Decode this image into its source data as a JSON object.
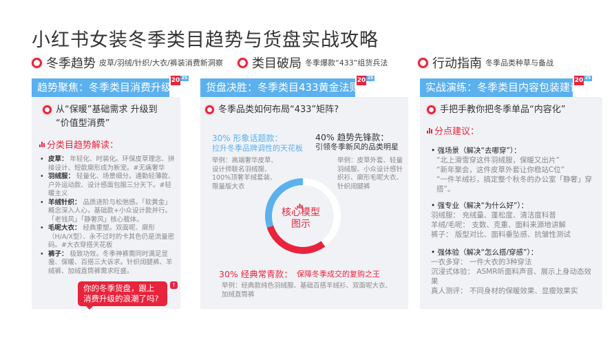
{
  "title": "小红书女装冬季类目趋势与货盘实战攻略",
  "colors": {
    "accent_red": "#e8243c",
    "accent_blue": "#5bb0ee",
    "panel_bg": "#f1f2f6"
  },
  "badge": {
    "year_a": "20",
    "year_b": "25"
  },
  "sections": [
    {
      "label": "冬季趋势",
      "desc": "皮草/羽绒/针织/大衣/裤装消费新洞察"
    },
    {
      "label": "类目破局",
      "desc": "冬季爆款“433”组货兵法"
    },
    {
      "label": "行动指南",
      "desc": "冬季品类种草与备战"
    }
  ],
  "col1": {
    "bar": "趋势聚焦：冬季类目消费升级",
    "question_1": "从“保暖”基础需求 升级到",
    "question_2": "“价值型消费”",
    "subtitle": "分类目趋势解读：",
    "items": [
      {
        "name": "皮草：",
        "text": "年轻化、时装化。环保皮草理念、拼接设计、短款廓形成为新宠。#无痛奢华"
      },
      {
        "name": "羽绒服：",
        "text": "轻量化、场景细分。通勤轻薄款、户外运动款、设计感面包服三分天下。#轻暖主义"
      },
      {
        "name": "羊绒针织：",
        "text": "品质进阶与松弛感。「软黄金」概念深入人心，基础款+小众设计款并行。「老钱风」「静奢风」核心载体。"
      },
      {
        "name": "毛呢大衣：",
        "text": "经典重塑。双面呢、廓形（H/A/X型）、永不过时的卡其色仍是流量密码。#大衣穿搭天花板"
      },
      {
        "name": "裤子：",
        "text": "极致功效。冬季神裤需同时满足显瘦、保暖、百搭三大诉求。针织阔腿裤、羊绒裤、加绒直筒裤需求旺盛。"
      }
    ],
    "bubble": "你的冬季货盘，跟上消费升级的浪潮了吗?"
  },
  "col2": {
    "bar": "货盘决胜：冬季类目433黄金法则",
    "question": "冬季品类如何布局“433”矩阵?",
    "image_title": "30% 形象话题款：",
    "image_sub": "拉升冬季品牌调性的天花板",
    "image_ex": "举例：高端奢华皮草、设计师联名羽绒服、100%顶奢羊绒套装、限量版大衣",
    "trend_title": "40% 趋势先锋款：",
    "trend_sub": "引领冬季新风的品类明星",
    "trend_ex": "举例：皮草外套、轻量羽绒服、小众设计感针织衫、廓形毛呢大衣、针织阔腿裤",
    "classic_title": "30% 经典常青款：",
    "classic_sub": "保障冬季成交的复购之王",
    "classic_ex": "举例：经典款纯色羽绒服、基础百搭羊绒衫、双面呢大衣、加绒直筒裤",
    "center_1": "核心模型",
    "center_2": "图示",
    "donut": [
      {
        "label": "形象话题款",
        "percent": 30,
        "color": "#5bb0ee"
      },
      {
        "label": "经典常青款",
        "percent": 30,
        "color": "#e8243c"
      },
      {
        "label": "趋势先锋款",
        "percent": 40,
        "color": "#ffffff"
      }
    ]
  },
  "col3": {
    "bar": "实战演练：冬季类目内容包装建议",
    "question": "手把手教你把冬季单品“内容化”",
    "subtitle": "分点建议：",
    "h1": "•  强场景（解决“去哪穿”）：",
    "l1": [
      "“北上滑雪穿这件羽绒服，保暖又出片”",
      "“新年聚会，这件皮草外套让你稳站C位”",
      "“一件羊绒衫，搞定整个秋冬的办公室「静奢」穿搭”。"
    ],
    "h2": "•  强专业（解决“为什么好”）：",
    "l2": [
      "羽绒服： 充绒量、蓬松度、清洁度科普",
      "羊绒/毛呢： 支数、克重、面料来源地讲解",
      "裤子： 版型对比、面料垂坠感、抗皱性测试"
    ],
    "h3": "•  强体验（解决“怎么搭/穿感”）：",
    "l3": [
      "一衣多穿： 一件大衣的3种穿法",
      "沉浸式体验： ASMR听面料声音、展示上身动态效果",
      "真人测评： 不同身材的保暖效果、显瘦效果实"
    ]
  }
}
